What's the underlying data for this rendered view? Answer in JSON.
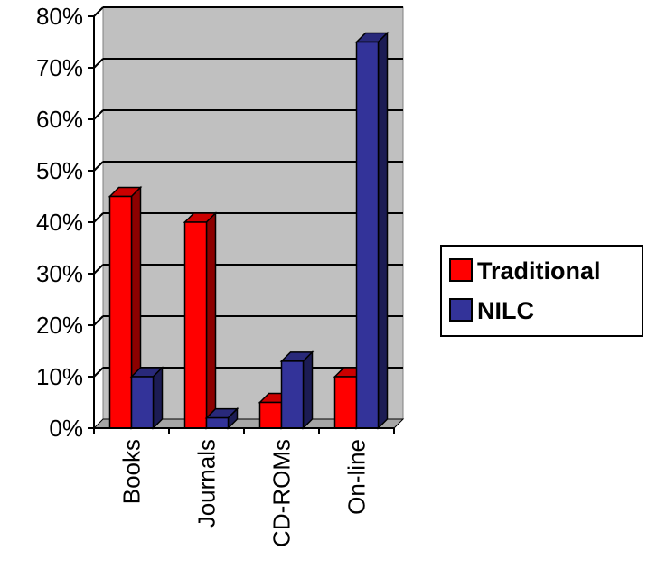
{
  "chart_data": {
    "type": "bar",
    "categories": [
      "Books",
      "Journals",
      "CD-ROMs",
      "On-line"
    ],
    "series": [
      {
        "name": "Traditional",
        "values": [
          45,
          40,
          5,
          10
        ],
        "color": "#ff0000"
      },
      {
        "name": "NILC",
        "values": [
          10,
          2,
          13,
          75
        ],
        "color": "#333399"
      }
    ],
    "ylim": [
      0,
      80
    ],
    "yticks": [
      0,
      10,
      20,
      30,
      40,
      50,
      60,
      70,
      80
    ],
    "ytick_format": "%",
    "grid": true,
    "legend_position": "right",
    "style": "3d-clustered-column",
    "plot_background": "#c0c0c0"
  }
}
